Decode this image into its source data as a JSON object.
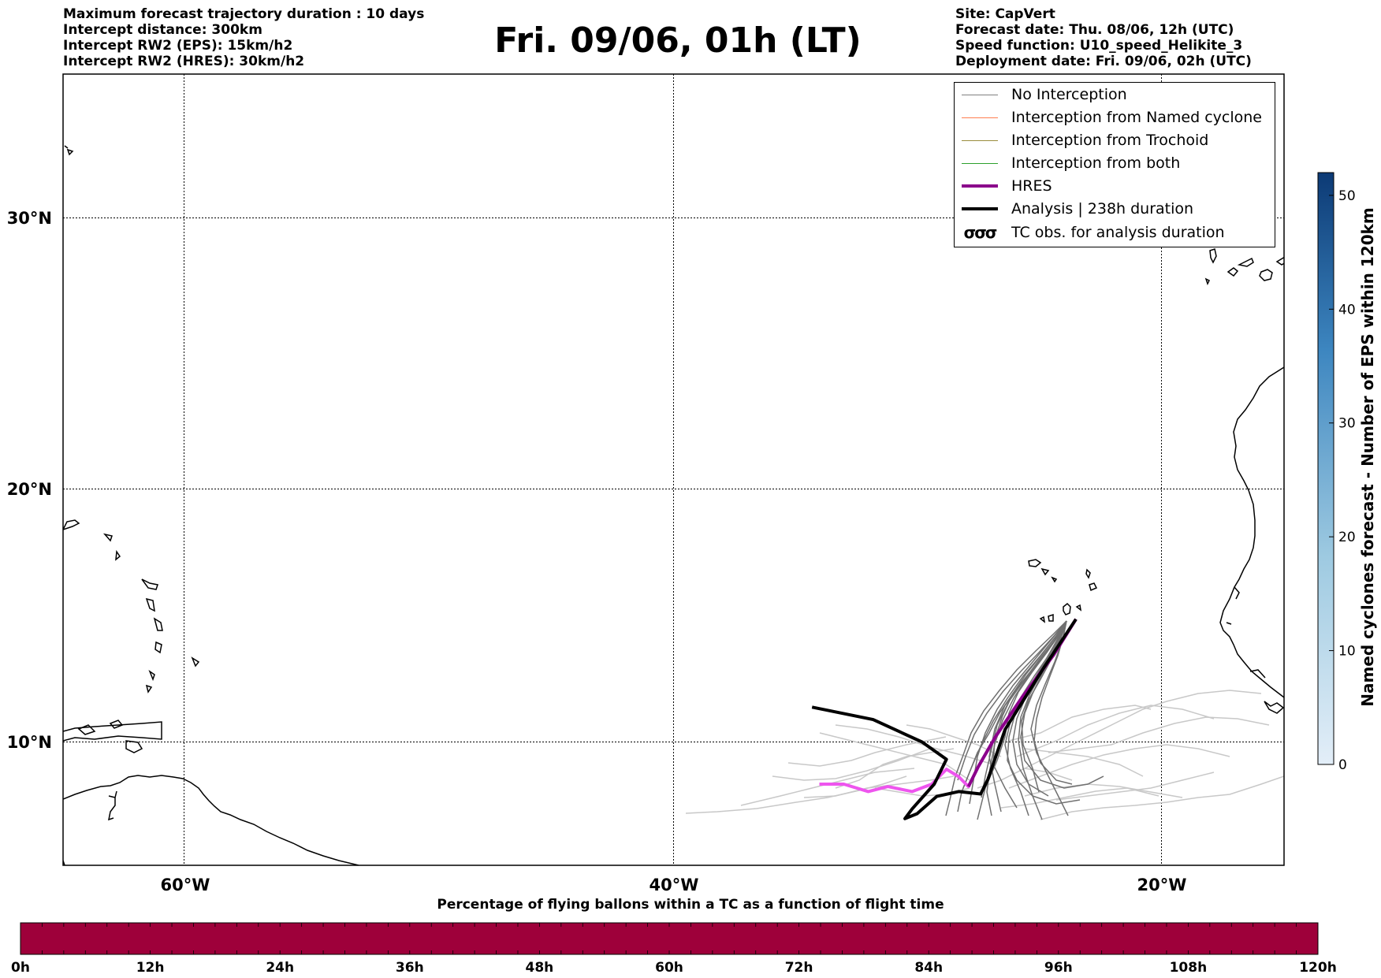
{
  "header": {
    "info_left": [
      "Maximum forecast trajectory duration : 10 days",
      "Intercept distance: 300km",
      "Intercept RW2 (EPS):  15km/h2",
      "Intercept RW2 (HRES): 30km/h2"
    ],
    "title": "Fri. 09/06, 01h (LT)",
    "info_right": [
      "Site: CapVert",
      "Forecast date: Thu. 08/06, 12h (UTC)",
      "Speed function: U10_speed_Helikite_3",
      "Deployment date: Fri. 09/06, 02h (UTC)"
    ]
  },
  "map": {
    "lat_labels": [
      "30°N",
      "20°N",
      "10°N"
    ],
    "lon_labels": [
      "60°W",
      "40°W",
      "20°W"
    ],
    "gridlines": true
  },
  "legend": {
    "placement": "top-right",
    "items": [
      {
        "label": "No Interception",
        "color": "#808080",
        "style": "thin-line"
      },
      {
        "label": "Interception from Named cyclone",
        "color": "#ff7f50",
        "style": "thin-line"
      },
      {
        "label": "Interception from Trochoid",
        "color": "#9a8c3c",
        "style": "thin-line"
      },
      {
        "label": "Interception from both",
        "color": "#2ca02c",
        "style": "thin-line"
      },
      {
        "label": "HRES",
        "color": "#8b008b",
        "style": "thick-line"
      },
      {
        "label": "Analysis | 238h duration",
        "color": "#000000",
        "style": "thick-line"
      },
      {
        "label": "TC obs. for analysis duration",
        "color": "#000000",
        "style": "cyclone-symbols"
      }
    ]
  },
  "colorbar_right": {
    "label": "Named cyclones forecast - Number of EPS within 120km",
    "ticks": [
      "0",
      "10",
      "20",
      "30",
      "40",
      "50"
    ],
    "color_low": "#e3eef8",
    "color_high": "#0c3a75"
  },
  "colorbar_bottom": {
    "title": "Percentage of flying ballons within a TC as a function of flight time",
    "ticks": [
      "0h",
      "12h",
      "24h",
      "36h",
      "48h",
      "60h",
      "72h",
      "84h",
      "96h",
      "108h",
      "120h"
    ],
    "fill_color": "#9e003a"
  },
  "trajectories": {
    "colors": {
      "eps_no_interception": "#808080",
      "eps_light": "#c8c8c8",
      "hres": "#ee55ee",
      "hres_dark": "#8b008b",
      "analysis": "#000000"
    },
    "launch_point": {
      "lon": -23.5,
      "lat": 14.9
    },
    "analysis": [
      [
        -23.5,
        14.9
      ],
      [
        -24.8,
        13.0
      ],
      [
        -26.4,
        10.5
      ],
      [
        -27.1,
        8.5
      ],
      [
        -27.4,
        7.9
      ],
      [
        -28.3,
        8.0
      ],
      [
        -29.2,
        7.8
      ],
      [
        -30.0,
        7.1
      ],
      [
        -30.5,
        6.9
      ],
      [
        -30.2,
        7.3
      ],
      [
        -29.3,
        8.3
      ],
      [
        -28.8,
        9.3
      ],
      [
        -29.8,
        10.0
      ],
      [
        -31.8,
        10.9
      ],
      [
        -34.3,
        11.4
      ]
    ],
    "hres": [
      [
        -23.5,
        14.9
      ],
      [
        -24.4,
        13.5
      ],
      [
        -25.7,
        11.8
      ],
      [
        -26.8,
        10.2
      ],
      [
        -27.5,
        9.0
      ],
      [
        -27.9,
        8.2
      ],
      [
        -28.3,
        8.6
      ],
      [
        -28.8,
        8.9
      ],
      [
        -29.4,
        8.3
      ],
      [
        -30.2,
        8.0
      ],
      [
        -31.2,
        8.2
      ],
      [
        -32.0,
        8.0
      ],
      [
        -33.0,
        8.3
      ],
      [
        -34.0,
        8.3
      ]
    ]
  }
}
